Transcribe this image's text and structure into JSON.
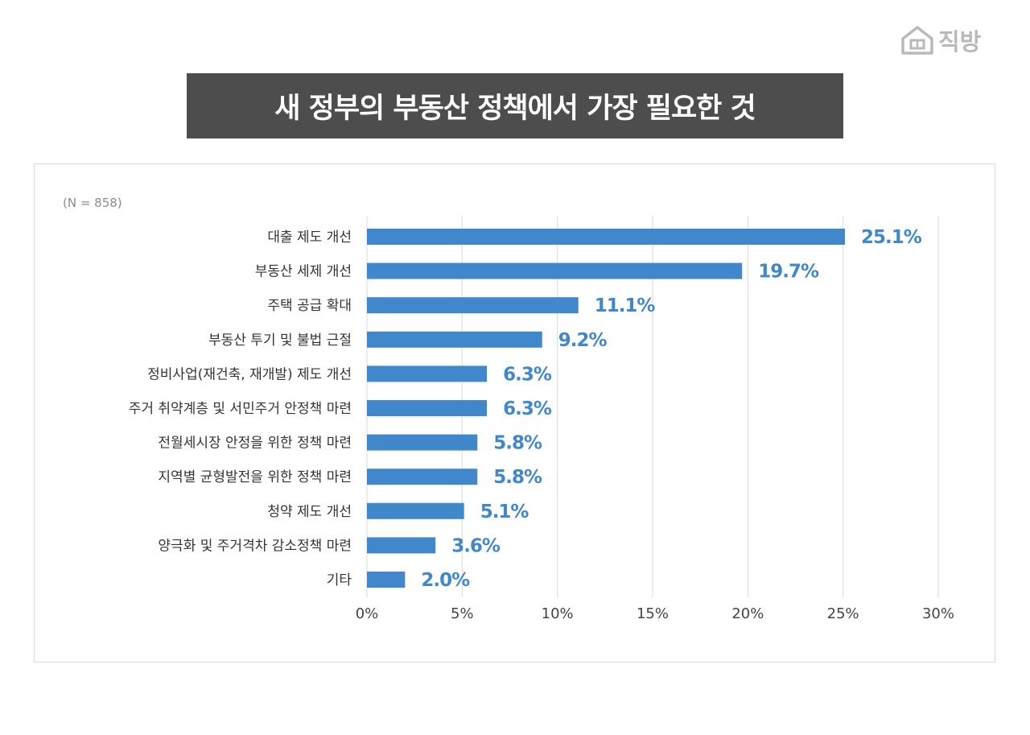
{
  "brand": {
    "name": "직방",
    "icon": "house-logo-icon",
    "color": "#b9b9b9"
  },
  "title": "새 정부의 부동산 정책에서 가장 필요한 것",
  "sample_note": "(N = 858)",
  "colors": {
    "bar": "#4187cc",
    "title_bg": "#4d4d4d",
    "grid": "#d9d9d9"
  },
  "chart_data": {
    "type": "bar",
    "orientation": "horizontal",
    "title": "새 정부의 부동산 정책에서 가장 필요한 것",
    "xlabel": "",
    "ylabel": "",
    "categories": [
      "대출 제도 개선",
      "부동산 세제 개선",
      "주택 공급 확대",
      "부동산 투기 및 불법 근절",
      "정비사업(재건축, 재개발) 제도 개선",
      "주거 취약계층 및 서민주거 안정책 마련",
      "전월세시장 안정을 위한 정책 마련",
      "지역별 균형발전을 위한 정책 마련",
      "청약 제도 개선",
      "양극화 및 주거격차 감소정책 마련",
      "기타"
    ],
    "values": [
      25.1,
      19.7,
      11.1,
      9.2,
      6.3,
      6.3,
      5.8,
      5.8,
      5.1,
      3.6,
      2.0
    ],
    "value_labels": [
      "25.1%",
      "19.7%",
      "11.1%",
      "9.2%",
      "6.3%",
      "6.3%",
      "5.8%",
      "5.8%",
      "5.1%",
      "3.6%",
      "2.0%"
    ],
    "xlim": [
      0,
      30
    ],
    "ticks": [
      0,
      5,
      10,
      15,
      20,
      25,
      30
    ],
    "tick_labels": [
      "0%",
      "5%",
      "10%",
      "15%",
      "20%",
      "25%",
      "30%"
    ],
    "grid": true,
    "legend": "none"
  }
}
